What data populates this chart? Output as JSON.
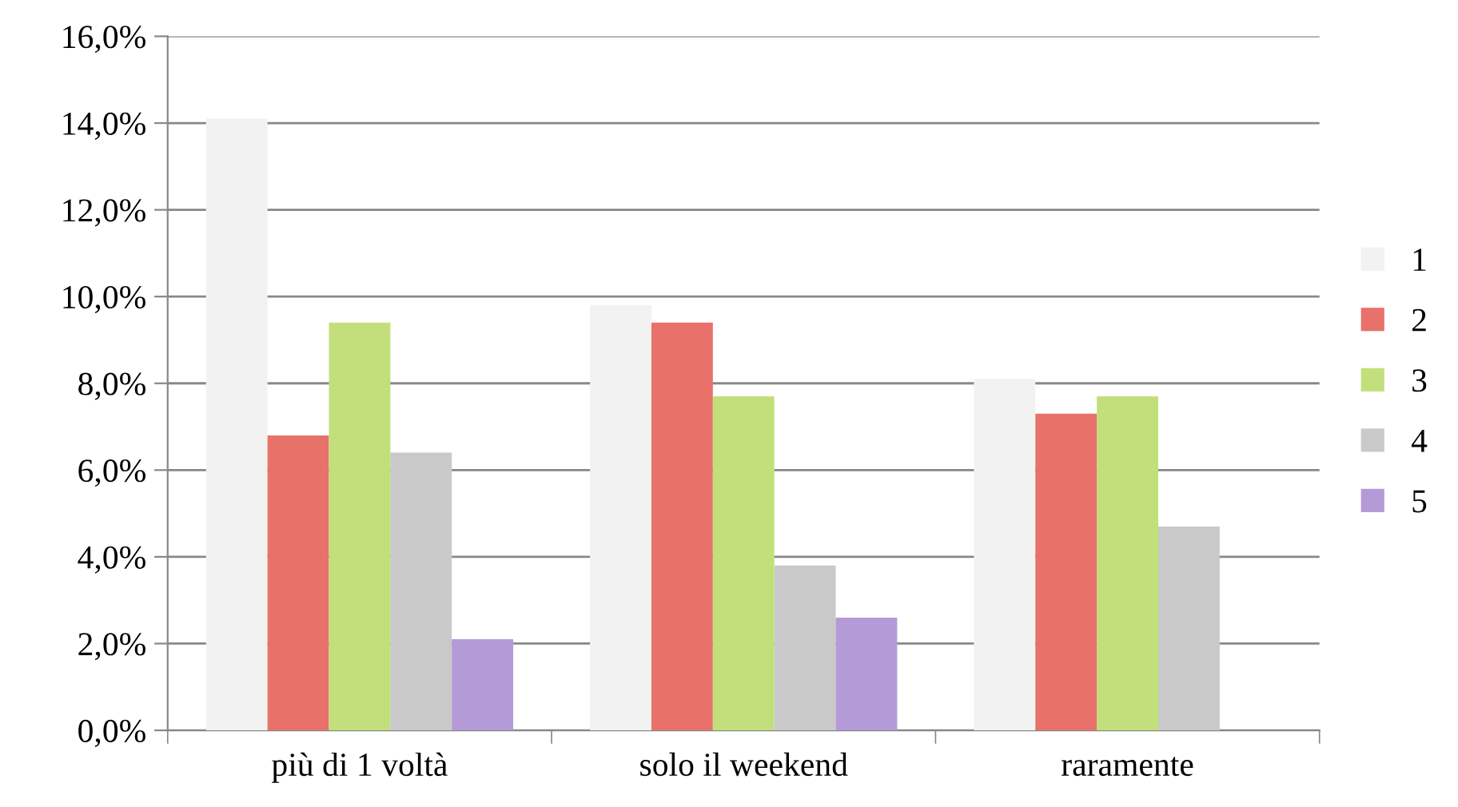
{
  "chart_data": {
    "type": "bar",
    "categories": [
      "più di 1 voltà",
      "solo il weekend",
      "raramente"
    ],
    "series": [
      {
        "name": "1",
        "color": "#f2f2f2",
        "values": [
          14.1,
          9.8,
          8.1
        ]
      },
      {
        "name": "2",
        "color": "#e8716a",
        "values": [
          6.8,
          9.4,
          7.3
        ]
      },
      {
        "name": "3",
        "color": "#c3df7c",
        "values": [
          9.4,
          7.7,
          7.7
        ]
      },
      {
        "name": "4",
        "color": "#c9c9c9",
        "values": [
          6.4,
          3.8,
          4.7
        ]
      },
      {
        "name": "5",
        "color": "#b49ad6",
        "values": [
          2.1,
          2.6,
          null
        ]
      }
    ],
    "ylim": [
      0,
      16
    ],
    "yticks": [
      {
        "value": 0,
        "label": "0,0%"
      },
      {
        "value": 2,
        "label": "2,0%"
      },
      {
        "value": 4,
        "label": "4,0%"
      },
      {
        "value": 6,
        "label": "6,0%"
      },
      {
        "value": 8,
        "label": "8,0%"
      },
      {
        "value": 10,
        "label": "10,0%"
      },
      {
        "value": 12,
        "label": "12,0%"
      },
      {
        "value": 14,
        "label": "14,0%"
      },
      {
        "value": 16,
        "label": "16,0%"
      }
    ],
    "grid": "y",
    "legend": "right"
  }
}
